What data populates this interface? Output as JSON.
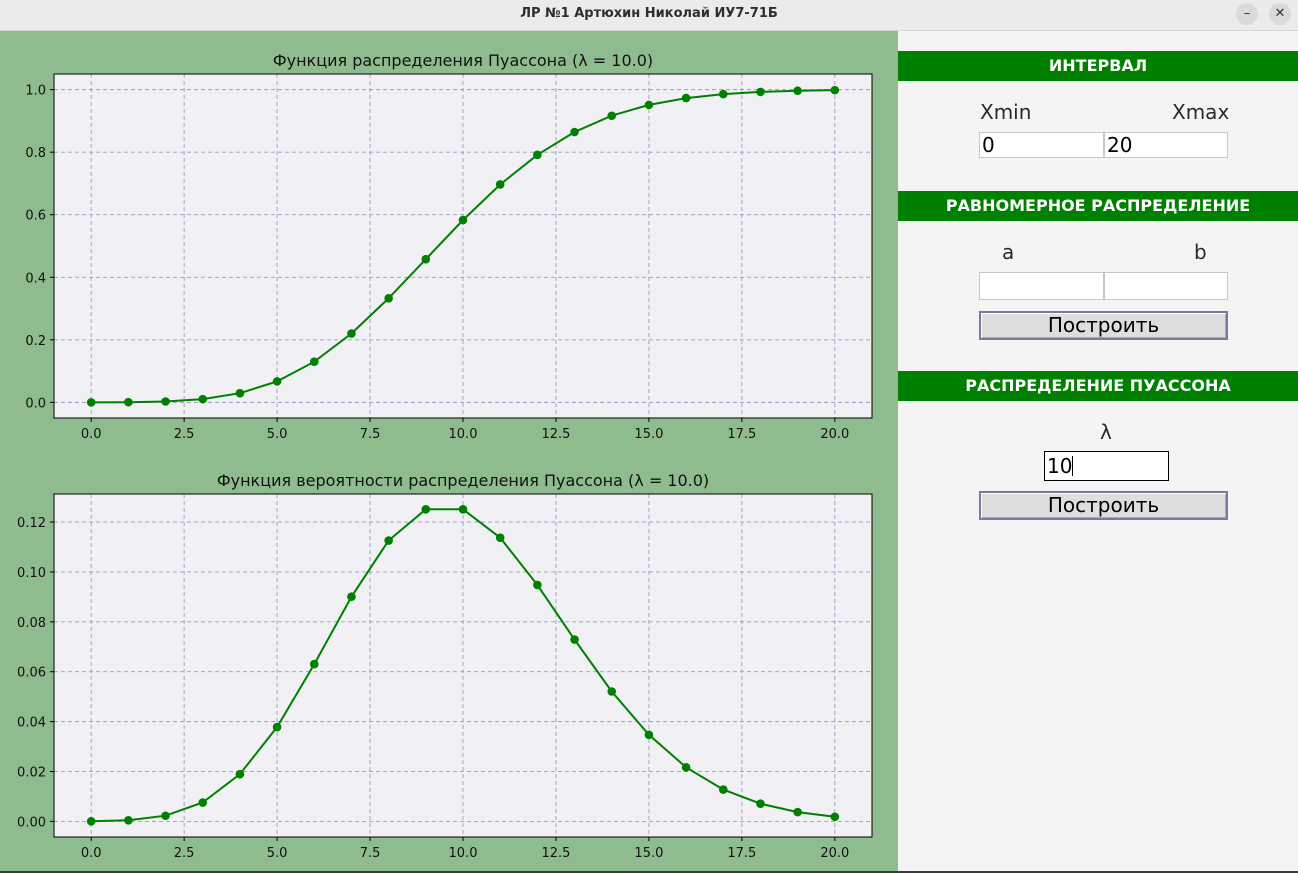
{
  "window": {
    "title": "ЛР №1 Артюхин Николай ИУ7-71Б",
    "minimize_glyph": "–",
    "close_glyph": "✕"
  },
  "colors": {
    "plot_background": "#8fbc8f",
    "axes_background": "#f0f0f5",
    "series": "#008000",
    "grid": "#9b9bc4",
    "section_header": "#008000"
  },
  "sidebar": {
    "interval": {
      "header": "ИНТЕРВАЛ",
      "xmin_label": "Xmin",
      "xmax_label": "Xmax",
      "xmin_value": "0",
      "xmax_value": "20"
    },
    "uniform": {
      "header": "РАВНОМЕРНОЕ РАСПРЕДЕЛЕНИЕ",
      "a_label": "a",
      "b_label": "b",
      "a_value": "",
      "b_value": "",
      "build_label": "Построить"
    },
    "poisson": {
      "header": "РАСПРЕДЕЛЕНИЕ ПУАССОНА",
      "lambda_label": "λ",
      "lambda_value": "10",
      "build_label": "Построить"
    }
  },
  "chart_data": [
    {
      "type": "line",
      "title": "Функция распределения Пуассона (λ = 10.0)",
      "xlabel": "",
      "ylabel": "",
      "xlim": [
        -1,
        21
      ],
      "ylim": [
        -0.05,
        1.05
      ],
      "grid": true,
      "markers": true,
      "xticks": [
        "0.0",
        "2.5",
        "5.0",
        "7.5",
        "10.0",
        "12.5",
        "15.0",
        "17.5",
        "20.0"
      ],
      "yticks": [
        "0.0",
        "0.2",
        "0.4",
        "0.6",
        "0.8",
        "1.0"
      ],
      "x": [
        0,
        1,
        2,
        3,
        4,
        5,
        6,
        7,
        8,
        9,
        10,
        11,
        12,
        13,
        14,
        15,
        16,
        17,
        18,
        19,
        20
      ],
      "y": [
        0.0,
        0.0005,
        0.0028,
        0.0103,
        0.0293,
        0.0671,
        0.1301,
        0.2202,
        0.3328,
        0.4579,
        0.583,
        0.6968,
        0.7916,
        0.8645,
        0.9165,
        0.9513,
        0.973,
        0.9857,
        0.9928,
        0.9965,
        0.9984
      ]
    },
    {
      "type": "line",
      "title": "Функция вероятности распределения Пуассона (λ = 10.0)",
      "xlabel": "",
      "ylabel": "",
      "xlim": [
        -1,
        21
      ],
      "ylim": [
        -0.00625,
        0.13125
      ],
      "grid": true,
      "markers": true,
      "xticks": [
        "0.0",
        "2.5",
        "5.0",
        "7.5",
        "10.0",
        "12.5",
        "15.0",
        "17.5",
        "20.0"
      ],
      "yticks": [
        "0.00",
        "0.02",
        "0.04",
        "0.06",
        "0.08",
        "0.10",
        "0.12"
      ],
      "x": [
        0,
        1,
        2,
        3,
        4,
        5,
        6,
        7,
        8,
        9,
        10,
        11,
        12,
        13,
        14,
        15,
        16,
        17,
        18,
        19,
        20
      ],
      "y": [
        5e-05,
        0.00045,
        0.00227,
        0.00757,
        0.01892,
        0.03783,
        0.06306,
        0.09008,
        0.1126,
        0.12511,
        0.12511,
        0.11374,
        0.09478,
        0.07291,
        0.05208,
        0.03472,
        0.0217,
        0.01276,
        0.00709,
        0.00373,
        0.00187
      ]
    }
  ]
}
